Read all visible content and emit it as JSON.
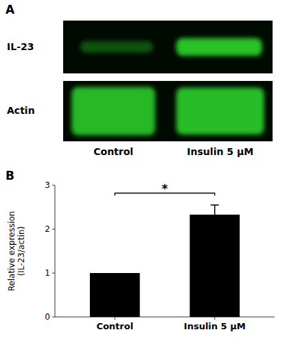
{
  "chart_data": {
    "type": "bar",
    "ylabel": "Relative expression\n(IL-23/actin)",
    "categories": [
      "Control",
      "Insulin 5 μM"
    ],
    "values": [
      1.0,
      2.33
    ],
    "errors": [
      0.0,
      0.22
    ],
    "color": "#000000",
    "ylim": [
      0,
      3
    ],
    "yticks": [
      0,
      1,
      2,
      3
    ],
    "grid": false,
    "annotations": [
      "A",
      "B",
      "IL-23",
      "Actin",
      "Control",
      "Insulin 5 μM",
      {
        "text": "*",
        "y": 2.82,
        "between": [
          0,
          1
        ]
      }
    ]
  }
}
